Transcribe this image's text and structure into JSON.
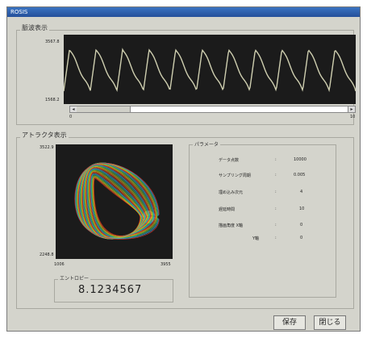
{
  "window": {
    "title": "ROSIS"
  },
  "waveform": {
    "group_label": "脈波表示",
    "y_max": "3567.8",
    "y_min": "1568.2",
    "x_start": "0",
    "x_end": "10"
  },
  "attractor": {
    "group_label": "アトラクタ表示",
    "y_max": "3522.9",
    "y_min": "2248.8",
    "x_min": "1006",
    "x_max": "3955"
  },
  "params": {
    "group_label": "パラメータ",
    "rows": [
      {
        "label": "データ点数",
        "sep": ":",
        "value": "10000"
      },
      {
        "label": "サンプリング周期",
        "sep": ":",
        "value": "0.005"
      },
      {
        "label": "埋め込み次元",
        "sep": ":",
        "value": "4"
      },
      {
        "label": "遅延時間",
        "sep": ":",
        "value": "10"
      },
      {
        "label": "描画角度 X軸",
        "sep": ":",
        "value": "0"
      },
      {
        "label": "Y軸",
        "sep": ":",
        "value": "0"
      }
    ]
  },
  "entropy": {
    "group_label": "エントロピー",
    "value": "8.1234567"
  },
  "buttons": {
    "save": "保存",
    "close": "閉じる"
  }
}
